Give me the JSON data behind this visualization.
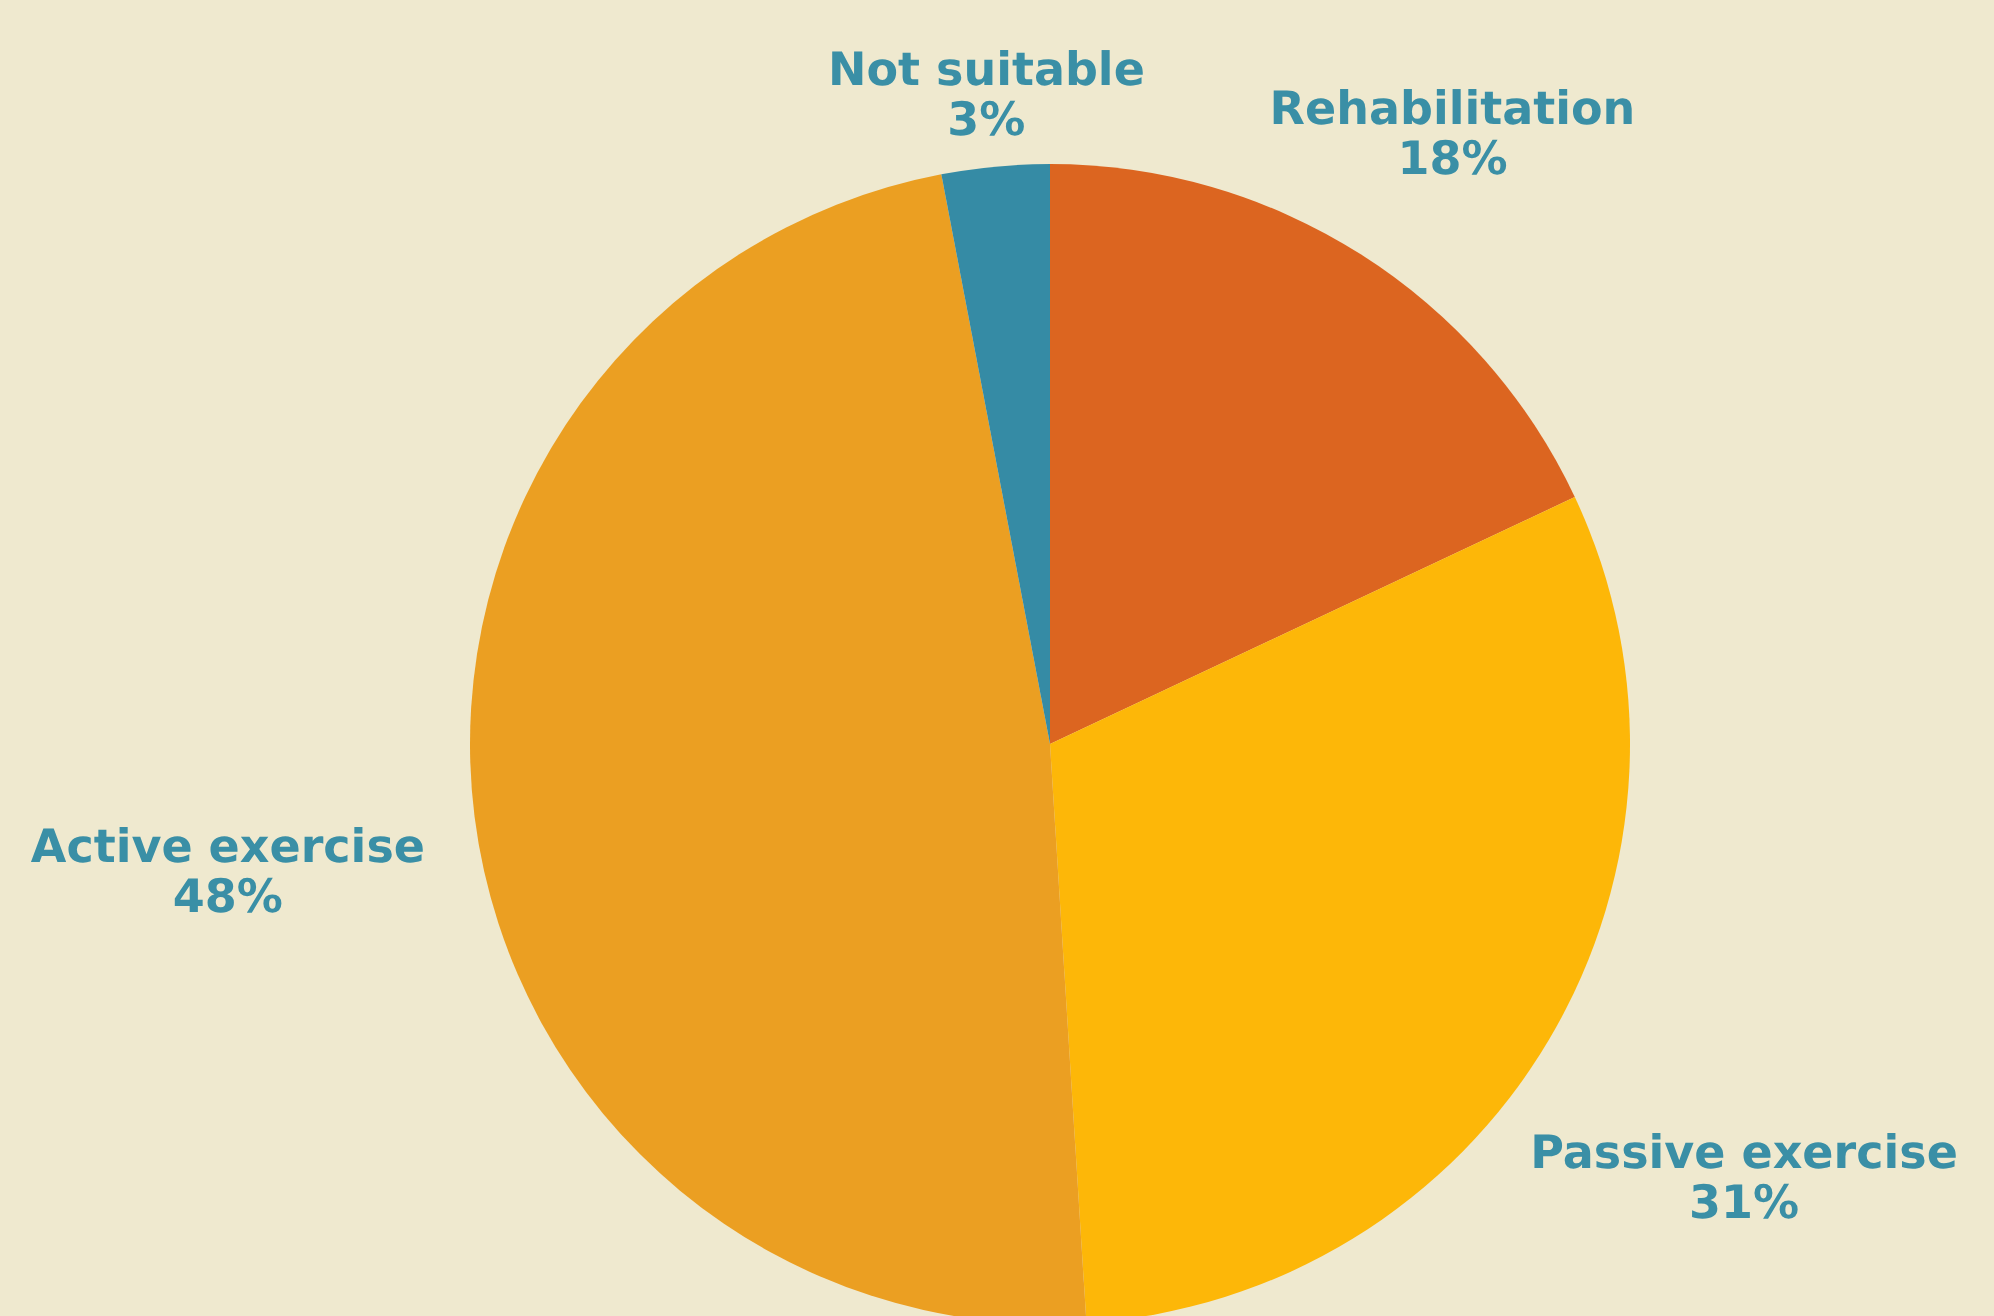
{
  "chart_data": {
    "type": "pie",
    "categories": [
      "Rehabilitation",
      "Passive exercise",
      "Active exercise",
      "Not suitable"
    ],
    "values": [
      18,
      31,
      48,
      3
    ],
    "value_labels": [
      "18%",
      "31%",
      "48%",
      "3%"
    ],
    "colors": [
      "#dc6520",
      "#fdb708",
      "#eb9f22",
      "#358ba5"
    ]
  }
}
